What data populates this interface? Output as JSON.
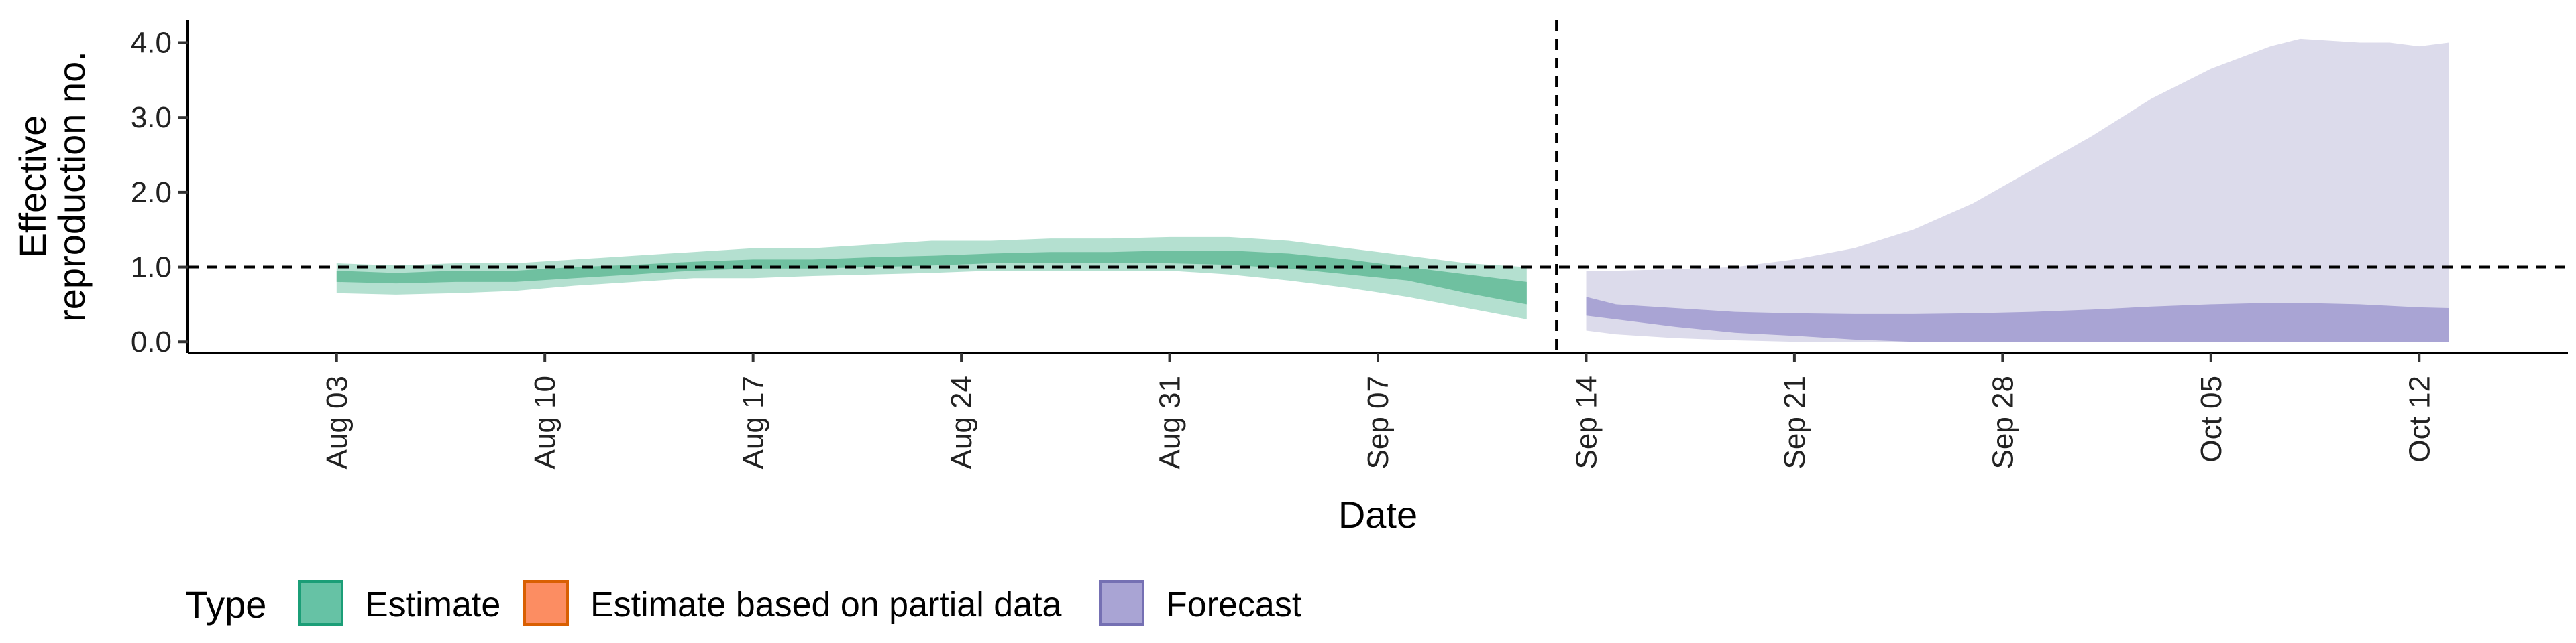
{
  "chart_data": {
    "type": "area",
    "xlabel": "Date",
    "ylabel": "Effective reproduction no.",
    "ylabel_lines": [
      "Effective",
      "reproduction no."
    ],
    "ylim": [
      -0.15,
      4.3
    ],
    "xlim": [
      "2020-07-29",
      "2020-10-17"
    ],
    "y_ticks": [
      0.0,
      1.0,
      2.0,
      3.0,
      4.0
    ],
    "y_tick_labels": [
      "0.0",
      "1.0",
      "2.0",
      "3.0",
      "4.0"
    ],
    "x_ticks": [
      "2020-08-03",
      "2020-08-10",
      "2020-08-17",
      "2020-08-24",
      "2020-08-31",
      "2020-09-07",
      "2020-09-14",
      "2020-09-21",
      "2020-09-28",
      "2020-10-05",
      "2020-10-12"
    ],
    "x_tick_labels": [
      "Aug 03",
      "Aug 10",
      "Aug 17",
      "Aug 24",
      "Aug 31",
      "Sep 07",
      "Sep 14",
      "Sep 21",
      "Sep 28",
      "Oct 05",
      "Oct 12"
    ],
    "reference_line": {
      "y": 1.0,
      "style": "dashed"
    },
    "vertical_line": {
      "x": "2020-09-13",
      "style": "dashed"
    },
    "grid": false,
    "legend": {
      "title": "Type",
      "placement": "bottom-left",
      "entries": [
        {
          "label": "Estimate",
          "fill": "#66c2a5",
          "stroke": "#1b9e77"
        },
        {
          "label": "Estimate based on partial data",
          "fill": "#fc8d62",
          "stroke": "#d95f02"
        },
        {
          "label": "Forecast",
          "fill": "#a9a4d4",
          "stroke": "#7570b3"
        }
      ]
    },
    "colors": {
      "estimate_outer": "#b4e0d0",
      "estimate_inner": "#6fc0a0",
      "forecast_outer": "#dcdbeb",
      "forecast_inner": "#a9a4d4"
    },
    "series": [
      {
        "name": "Estimate",
        "x": [
          "2020-08-03",
          "2020-08-05",
          "2020-08-07",
          "2020-08-09",
          "2020-08-11",
          "2020-08-13",
          "2020-08-15",
          "2020-08-17",
          "2020-08-19",
          "2020-08-21",
          "2020-08-23",
          "2020-08-25",
          "2020-08-27",
          "2020-08-29",
          "2020-08-31",
          "2020-09-02",
          "2020-09-04",
          "2020-09-06",
          "2020-09-08",
          "2020-09-10",
          "2020-09-12"
        ],
        "outer_upper": [
          1.05,
          1.02,
          1.05,
          1.05,
          1.1,
          1.15,
          1.2,
          1.25,
          1.25,
          1.3,
          1.35,
          1.35,
          1.38,
          1.38,
          1.4,
          1.4,
          1.35,
          1.25,
          1.15,
          1.05,
          1.0
        ],
        "inner_upper": [
          0.95,
          0.92,
          0.95,
          0.95,
          1.0,
          1.03,
          1.07,
          1.1,
          1.1,
          1.13,
          1.15,
          1.18,
          1.2,
          1.2,
          1.22,
          1.22,
          1.18,
          1.1,
          1.0,
          0.9,
          0.8
        ],
        "inner_lower": [
          0.8,
          0.78,
          0.8,
          0.8,
          0.85,
          0.9,
          0.95,
          0.98,
          0.98,
          1.0,
          1.02,
          1.05,
          1.05,
          1.05,
          1.05,
          1.03,
          0.98,
          0.9,
          0.82,
          0.65,
          0.5
        ],
        "outer_lower": [
          0.65,
          0.63,
          0.65,
          0.68,
          0.75,
          0.8,
          0.85,
          0.85,
          0.88,
          0.9,
          0.92,
          0.95,
          0.95,
          0.95,
          0.95,
          0.9,
          0.82,
          0.72,
          0.6,
          0.45,
          0.3
        ]
      },
      {
        "name": "Forecast",
        "x": [
          "2020-09-14",
          "2020-09-15",
          "2020-09-17",
          "2020-09-19",
          "2020-09-21",
          "2020-09-23",
          "2020-09-25",
          "2020-09-27",
          "2020-09-29",
          "2020-10-01",
          "2020-10-03",
          "2020-10-05",
          "2020-10-07",
          "2020-10-08",
          "2020-10-10",
          "2020-10-11",
          "2020-10-12",
          "2020-10-13"
        ],
        "outer_upper": [
          0.95,
          0.95,
          0.97,
          1.0,
          1.1,
          1.25,
          1.5,
          1.85,
          2.3,
          2.75,
          3.25,
          3.65,
          3.95,
          4.05,
          4.0,
          4.0,
          3.95,
          4.0
        ],
        "inner_upper": [
          0.6,
          0.5,
          0.45,
          0.4,
          0.38,
          0.37,
          0.37,
          0.38,
          0.4,
          0.43,
          0.47,
          0.5,
          0.52,
          0.52,
          0.5,
          0.48,
          0.46,
          0.45
        ],
        "inner_lower": [
          0.35,
          0.3,
          0.2,
          0.12,
          0.08,
          0.03,
          0.0,
          0.0,
          0.0,
          0.0,
          0.0,
          0.0,
          0.0,
          0.0,
          0.0,
          0.0,
          0.0,
          0.0
        ],
        "outer_lower": [
          0.15,
          0.1,
          0.05,
          0.02,
          0.0,
          0.0,
          0.0,
          0.0,
          0.0,
          0.0,
          0.0,
          0.0,
          0.0,
          0.0,
          0.0,
          0.0,
          0.0,
          0.0
        ]
      }
    ]
  }
}
